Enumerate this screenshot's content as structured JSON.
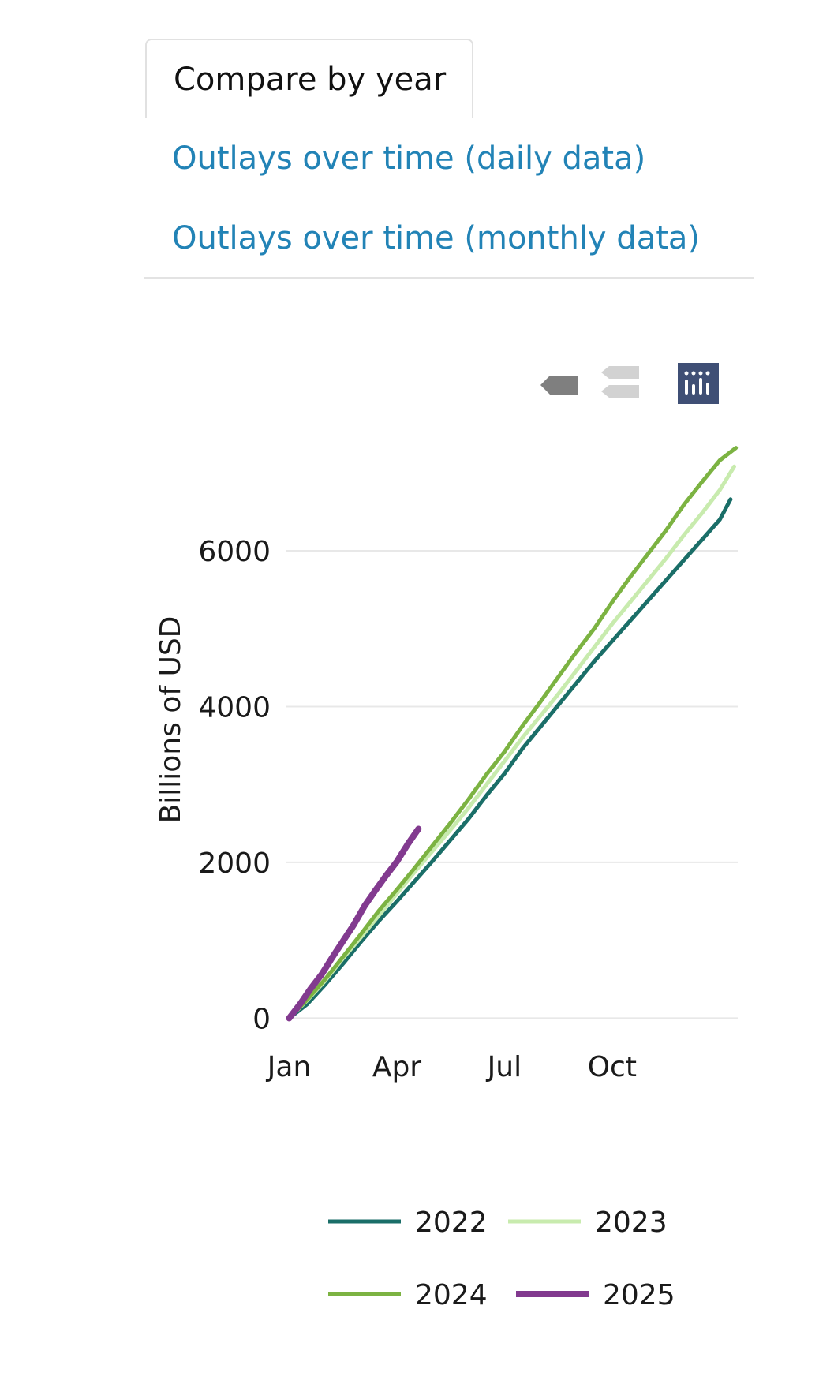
{
  "tabs": {
    "active_label": "Compare by year",
    "links": [
      "Outlays over time (daily data)",
      "Outlays over time (monthly data)"
    ]
  },
  "modebar": {
    "icons": [
      "zoom-in-hover-icon",
      "compare-hover-icon",
      "plotly-logo-icon"
    ],
    "logo_color": "#3f4f75"
  },
  "chart_data": {
    "type": "line",
    "ylabel": "Billions of USD",
    "x_ticks": [
      "Jan",
      "Apr",
      "Jul",
      "Oct"
    ],
    "x_tick_months": [
      1,
      4,
      7,
      10
    ],
    "xlim": [
      0.9,
      13.5
    ],
    "y_ticks": [
      "0",
      "2000",
      "4000",
      "6000"
    ],
    "y_tick_values": [
      0,
      2000,
      4000,
      6000
    ],
    "ylim": [
      -300,
      7600
    ],
    "grid": true,
    "legend_placement": "bottom",
    "x_unit": "month (fractional)",
    "series": [
      {
        "name": "2022",
        "color": "#1a6e68",
        "x": [
          1,
          1.5,
          2,
          2.5,
          3,
          3.5,
          4,
          4.5,
          5,
          5.5,
          6,
          6.5,
          7,
          7.5,
          8,
          8.5,
          9,
          9.5,
          10,
          10.5,
          11,
          11.5,
          12,
          12.5,
          13,
          13.3
        ],
        "y": [
          0,
          180,
          430,
          700,
          980,
          1250,
          1500,
          1760,
          2020,
          2290,
          2560,
          2860,
          3140,
          3460,
          3740,
          4020,
          4300,
          4580,
          4840,
          5100,
          5360,
          5620,
          5880,
          6140,
          6400,
          6660
        ]
      },
      {
        "name": "2023",
        "color": "#c8ebae",
        "x": [
          1,
          1.5,
          2,
          2.5,
          3,
          3.5,
          4,
          4.5,
          5,
          5.5,
          6,
          6.5,
          7,
          7.5,
          8,
          8.5,
          9,
          9.5,
          10,
          10.5,
          11,
          11.5,
          12,
          12.5,
          13,
          13.4
        ],
        "y": [
          0,
          230,
          480,
          770,
          1040,
          1320,
          1600,
          1880,
          2150,
          2420,
          2700,
          3000,
          3300,
          3600,
          3880,
          4160,
          4460,
          4760,
          5060,
          5340,
          5620,
          5900,
          6200,
          6480,
          6780,
          7080
        ]
      },
      {
        "name": "2024",
        "color": "#7cb342",
        "x": [
          1,
          1.5,
          2,
          2.5,
          3,
          3.5,
          4,
          4.5,
          5,
          5.5,
          6,
          6.5,
          7,
          7.5,
          8,
          8.5,
          9,
          9.5,
          10,
          10.5,
          11,
          11.5,
          12,
          12.5,
          13,
          13.45
        ],
        "y": [
          0,
          240,
          500,
          790,
          1080,
          1380,
          1650,
          1930,
          2220,
          2510,
          2810,
          3130,
          3420,
          3750,
          4060,
          4380,
          4700,
          5000,
          5340,
          5660,
          5960,
          6260,
          6590,
          6880,
          7160,
          7320
        ]
      },
      {
        "name": "2025",
        "color": "#823a8f",
        "x": [
          1,
          1.3,
          1.6,
          1.9,
          2.2,
          2.5,
          2.8,
          3.1,
          3.4,
          3.7,
          4,
          4.3,
          4.6
        ],
        "y": [
          0,
          180,
          380,
          560,
          780,
          990,
          1200,
          1440,
          1640,
          1830,
          2010,
          2230,
          2430
        ]
      }
    ]
  }
}
